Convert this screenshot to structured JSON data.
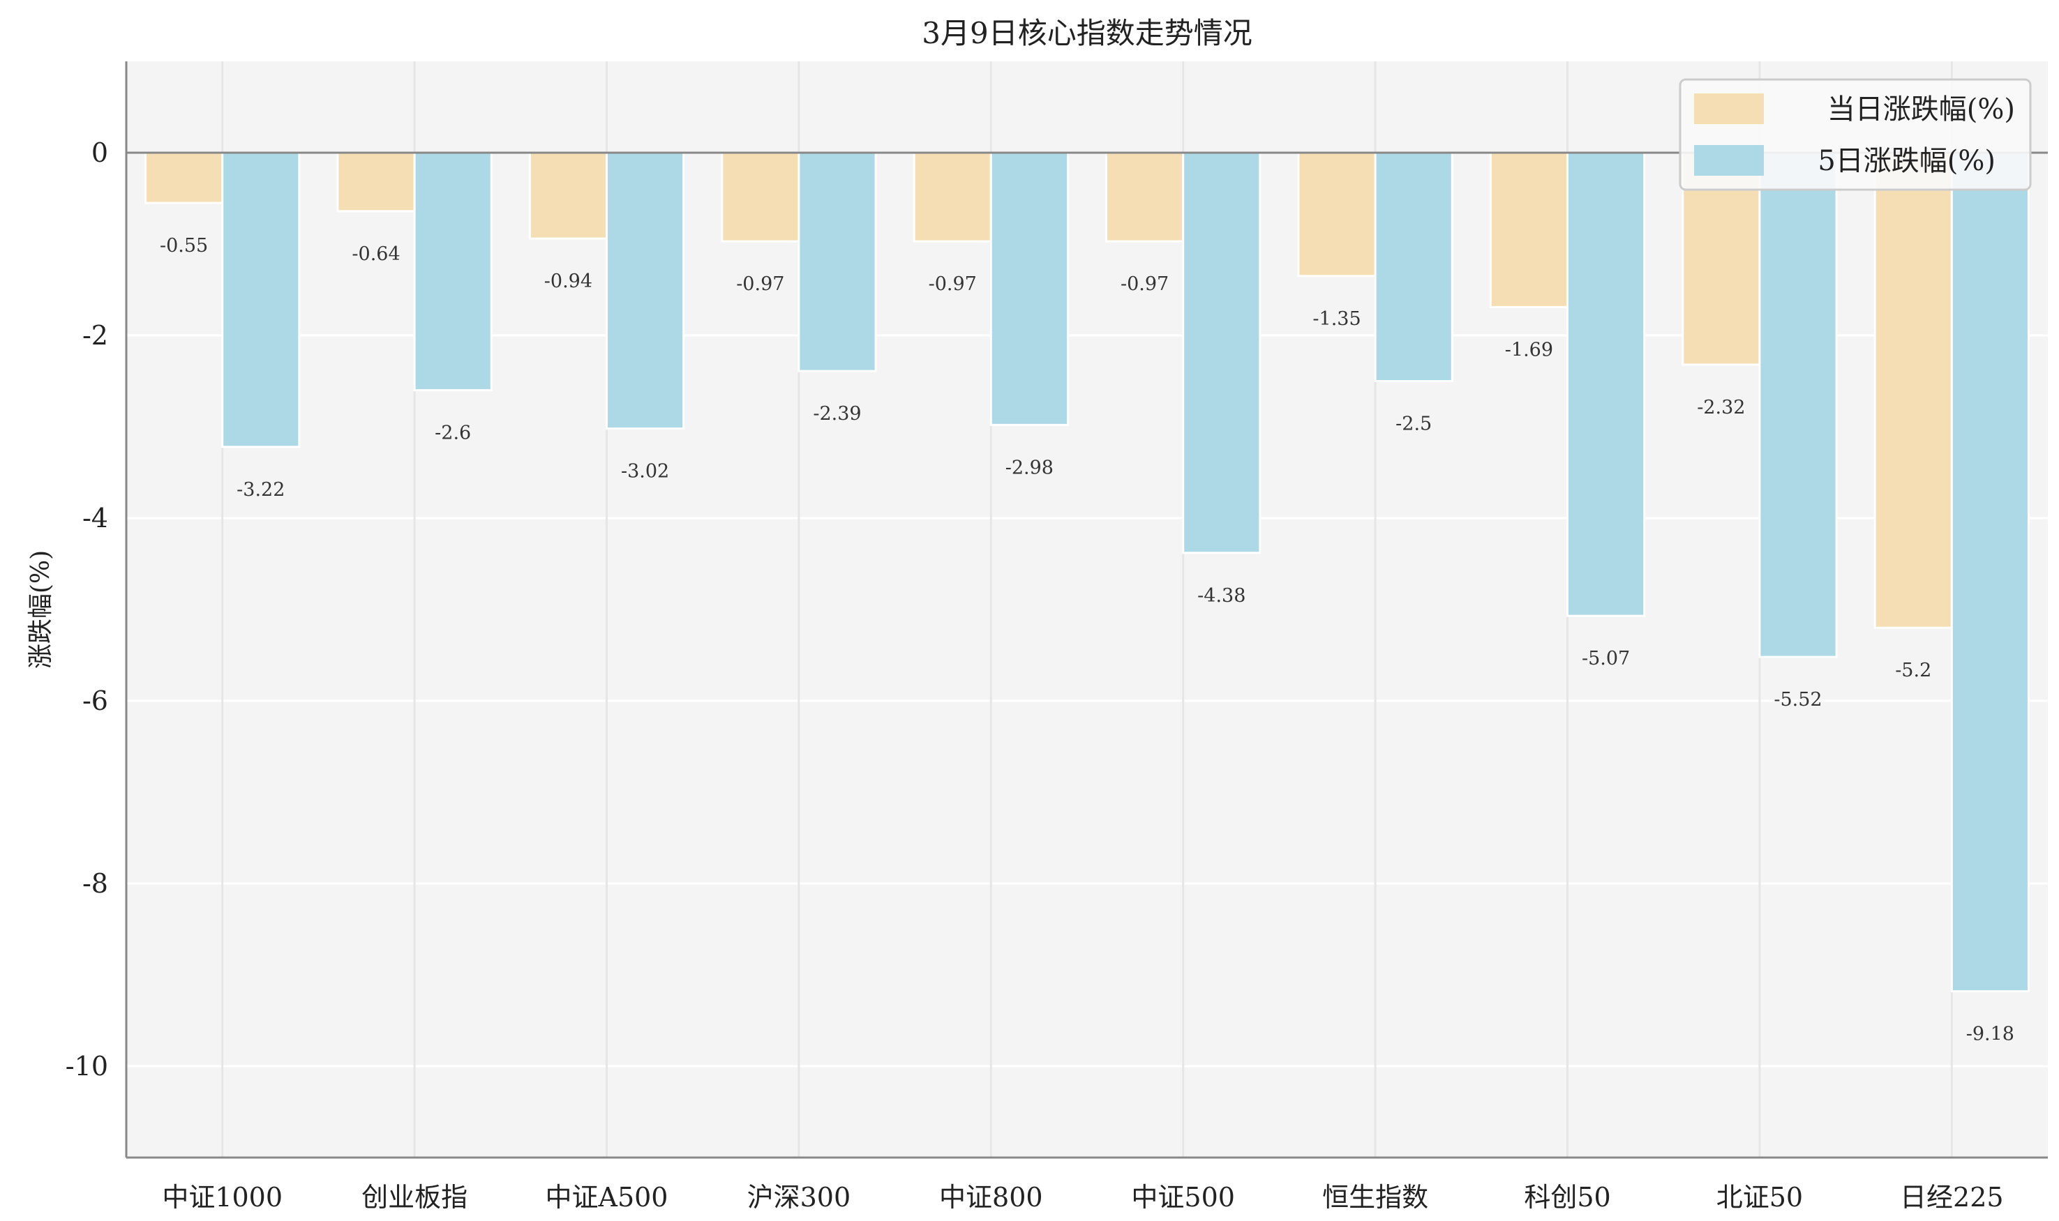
{
  "chart_data": {
    "type": "bar",
    "title": "3月9日核心指数走势情况",
    "xlabel": "",
    "ylabel": "涨跌幅(%)",
    "ylim": [
      -11,
      1
    ],
    "yticks": [
      0,
      -2,
      -4,
      -6,
      -8,
      -10
    ],
    "grid": true,
    "legend_position": "top-right",
    "categories": [
      "中证1000",
      "创业板指",
      "中证A500",
      "沪深300",
      "中证800",
      "中证500",
      "恒生指数",
      "科创50",
      "北证50",
      "日经225"
    ],
    "series": [
      {
        "name": "当日涨跌幅(%)",
        "color": "#f5deb3",
        "values": [
          -0.55,
          -0.64,
          -0.94,
          -0.97,
          -0.97,
          -0.97,
          -1.35,
          -1.69,
          -2.32,
          -5.2
        ]
      },
      {
        "name": "5日涨跌幅(%)",
        "color": "#add8e6",
        "values": [
          -3.22,
          -2.6,
          -3.02,
          -2.39,
          -2.98,
          -4.38,
          -2.5,
          -5.07,
          -5.52,
          -9.18
        ]
      }
    ]
  }
}
